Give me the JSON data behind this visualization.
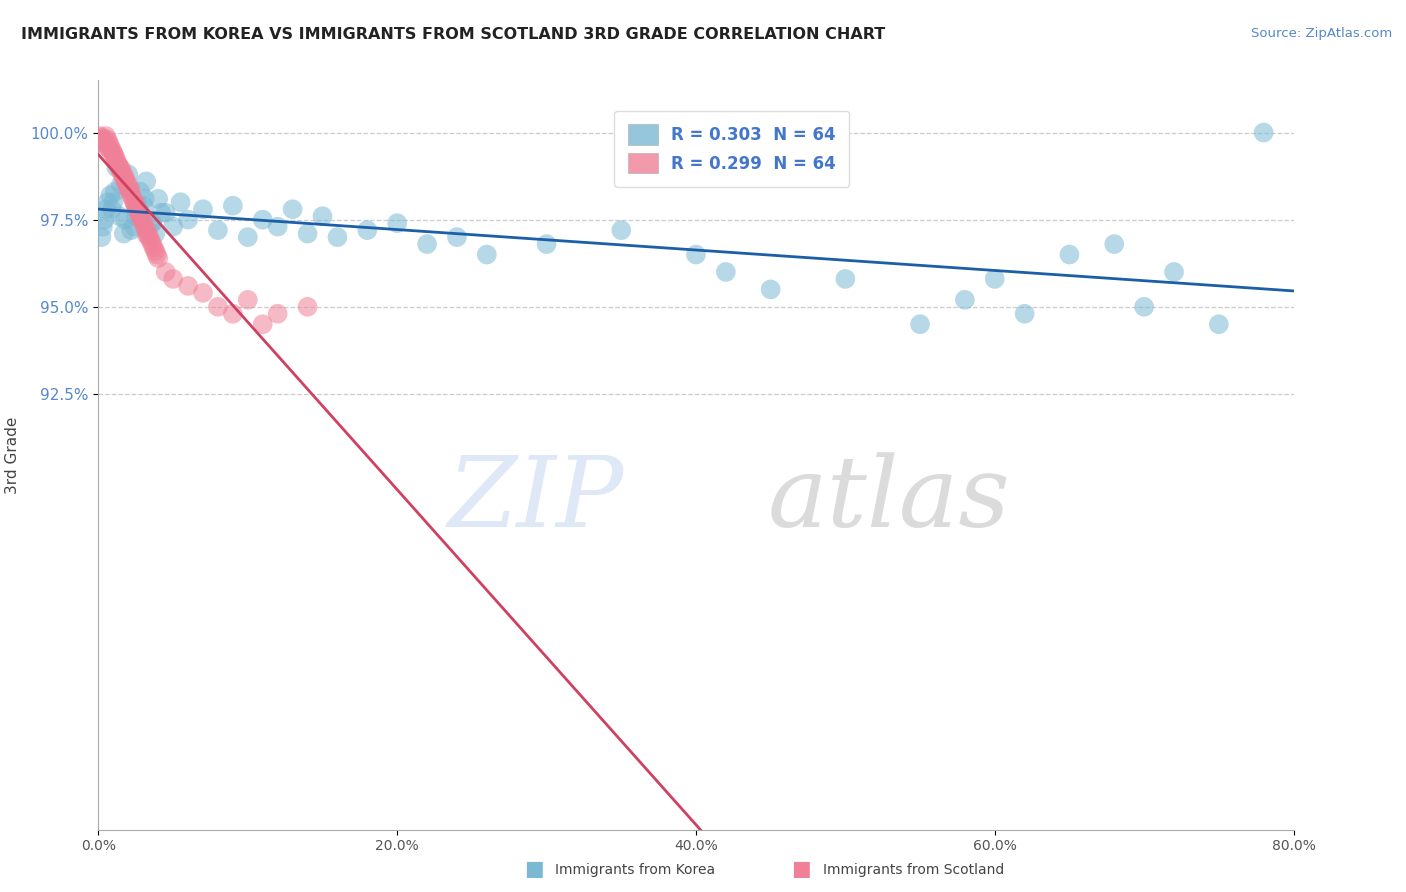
{
  "title": "IMMIGRANTS FROM KOREA VS IMMIGRANTS FROM SCOTLAND 3RD GRADE CORRELATION CHART",
  "source": "Source: ZipAtlas.com",
  "ylabel": "3rd Grade",
  "xlim": [
    0.0,
    80.0
  ],
  "ylim": [
    80.0,
    101.5
  ],
  "yticks": [
    92.5,
    95.0,
    97.5,
    100.0
  ],
  "ytick_labels": [
    "92.5%",
    "95.0%",
    "97.5%",
    "100.0%"
  ],
  "xticks": [
    0,
    20,
    40,
    60,
    80
  ],
  "xtick_labels": [
    "0.0%",
    "20.0%",
    "40.0%",
    "60.0%",
    "80.0%"
  ],
  "legend_label_korea": "R = 0.303  N = 64",
  "legend_label_scotland": "R = 0.299  N = 64",
  "korea_color": "#7bb8d4",
  "scotland_color": "#f08098",
  "korea_trend_color": "#1a5fa8",
  "scotland_trend_color": "#d04060",
  "watermark_zip_color": "#c8daf0",
  "watermark_atlas_color": "#b8b8b8",
  "korea_x": [
    0.3,
    0.5,
    0.8,
    1.0,
    1.2,
    1.5,
    1.8,
    2.0,
    2.2,
    2.5,
    2.8,
    3.0,
    3.2,
    3.5,
    3.8,
    4.0,
    4.5,
    5.0,
    5.5,
    6.0,
    7.0,
    8.0,
    9.0,
    10.0,
    11.0,
    12.0,
    13.0,
    14.0,
    15.0,
    16.0,
    18.0,
    20.0,
    22.0,
    24.0,
    26.0,
    30.0,
    35.0,
    40.0,
    42.0,
    45.0,
    50.0,
    55.0,
    58.0,
    60.0,
    62.0,
    65.0,
    68.0,
    70.0,
    72.0,
    75.0,
    0.2,
    0.4,
    0.6,
    0.9,
    1.1,
    1.4,
    1.7,
    2.1,
    2.4,
    2.7,
    3.1,
    3.6,
    4.2,
    78.0
  ],
  "korea_y": [
    97.3,
    97.8,
    98.2,
    98.0,
    99.0,
    98.5,
    97.5,
    98.8,
    97.2,
    97.6,
    98.3,
    97.9,
    98.6,
    97.4,
    97.1,
    98.1,
    97.7,
    97.3,
    98.0,
    97.5,
    97.8,
    97.2,
    97.9,
    97.0,
    97.5,
    97.3,
    97.8,
    97.1,
    97.6,
    97.0,
    97.2,
    97.4,
    96.8,
    97.0,
    96.5,
    96.8,
    97.2,
    96.5,
    96.0,
    95.5,
    95.8,
    94.5,
    95.2,
    95.8,
    94.8,
    96.5,
    96.8,
    95.0,
    96.0,
    94.5,
    97.0,
    97.5,
    98.0,
    97.8,
    98.3,
    97.6,
    97.1,
    98.4,
    97.3,
    97.9,
    98.1,
    97.4,
    97.7,
    100.0
  ],
  "scotland_x": [
    0.1,
    0.2,
    0.3,
    0.4,
    0.5,
    0.6,
    0.7,
    0.8,
    0.9,
    1.0,
    1.1,
    1.2,
    1.3,
    1.4,
    1.5,
    1.6,
    1.7,
    1.8,
    1.9,
    2.0,
    2.1,
    2.2,
    2.3,
    2.4,
    2.5,
    2.6,
    2.7,
    2.8,
    2.9,
    3.0,
    3.1,
    3.2,
    3.3,
    3.4,
    3.5,
    3.6,
    3.7,
    3.8,
    3.9,
    4.0,
    4.5,
    5.0,
    6.0,
    7.0,
    8.0,
    9.0,
    10.0,
    11.0,
    12.0,
    14.0,
    0.15,
    0.25,
    0.45,
    0.65,
    0.85,
    1.05,
    1.35,
    1.55,
    1.75,
    1.95,
    2.15,
    2.45,
    2.75,
    3.25
  ],
  "scotland_y": [
    99.9,
    99.8,
    99.7,
    99.8,
    99.9,
    99.8,
    99.7,
    99.6,
    99.5,
    99.4,
    99.3,
    99.2,
    99.1,
    99.0,
    98.9,
    98.8,
    98.7,
    98.6,
    98.5,
    98.4,
    98.3,
    98.2,
    98.1,
    98.0,
    97.9,
    97.8,
    97.7,
    97.6,
    97.5,
    97.4,
    97.3,
    97.2,
    97.1,
    97.0,
    96.9,
    96.8,
    96.7,
    96.6,
    96.5,
    96.4,
    96.0,
    95.8,
    95.6,
    95.4,
    95.0,
    94.8,
    95.2,
    94.5,
    94.8,
    95.0,
    99.85,
    99.75,
    99.65,
    99.55,
    99.45,
    99.35,
    99.05,
    98.95,
    98.75,
    98.55,
    98.35,
    97.95,
    97.65,
    97.05
  ]
}
